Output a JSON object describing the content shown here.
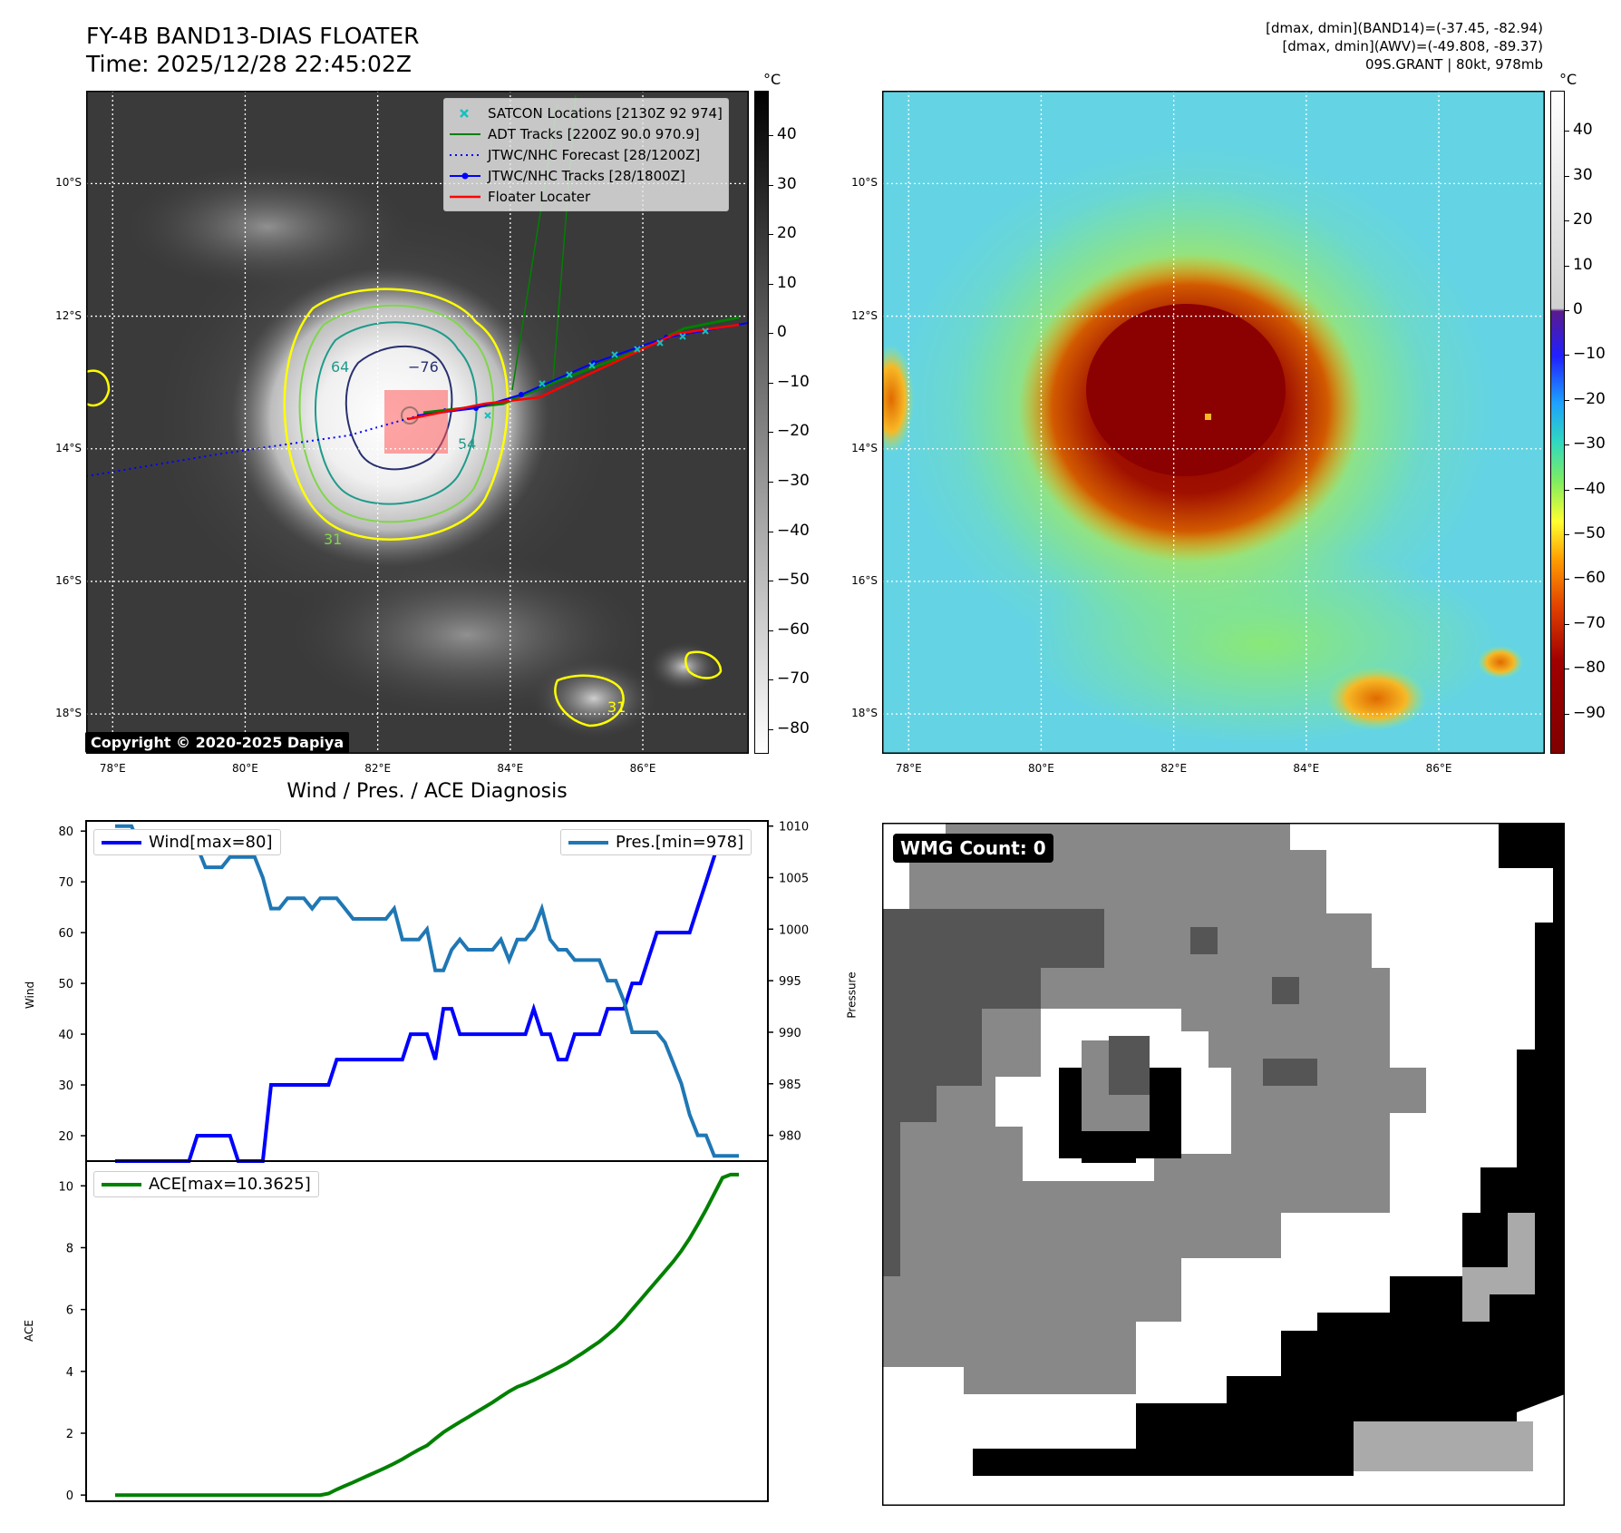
{
  "header": {
    "title_line1": "FY-4B BAND13-DIAS FLOATER",
    "title_line2": "Time: 2025/12/28 22:45:02Z",
    "info_line1": "[dmax, dmin](BAND14)=(-37.45, -82.94)",
    "info_line2": "[dmax, dmin](AWV)=(-49.808, -89.37)",
    "info_line3": "09S.GRANT | 80kt, 978mb"
  },
  "map_axes": {
    "lat_labels": [
      "10°S",
      "12°S",
      "14°S",
      "16°S",
      "18°S"
    ],
    "lon_labels": [
      "78°E",
      "80°E",
      "82°E",
      "84°E",
      "86°E"
    ],
    "lat_values": [
      -10,
      -12,
      -14,
      -16,
      -18
    ],
    "lon_values": [
      78,
      80,
      82,
      84,
      86
    ],
    "lat_range": [
      -18.6,
      -8.6
    ],
    "lon_range": [
      77.6,
      87.6
    ]
  },
  "ir_panel": {
    "colorbar_unit": "°C",
    "colorbar_ticks": [
      "40",
      "30",
      "20",
      "10",
      "0",
      "−10",
      "−20",
      "−30",
      "−40",
      "−50",
      "−60",
      "−70",
      "−80"
    ],
    "colorbar_tick_values": [
      40,
      30,
      20,
      10,
      0,
      -10,
      -20,
      -30,
      -40,
      -50,
      -60,
      -70,
      -80
    ],
    "colorbar_range": [
      -85,
      49
    ],
    "copyright": "Copyright © 2020-2025 Dapiya",
    "contour_labels": [
      "64",
      "−76",
      "54",
      "31",
      "31"
    ],
    "legend": [
      {
        "label": "SATCON Locations [2130Z 92 974]",
        "color": "#17bfbf",
        "marker": "x-icon"
      },
      {
        "label": "ADT Tracks [2200Z 90.0 970.9]",
        "color": "#008000",
        "marker": "line-icon"
      },
      {
        "label": "JTWC/NHC Forecast [28/1200Z]",
        "color": "#0000ff",
        "marker": "dotted-line-icon"
      },
      {
        "label": "JTWC/NHC Tracks [28/1800Z]",
        "color": "#0000ff",
        "marker": "dot-line-icon"
      },
      {
        "label": "Floater Locater",
        "color": "#ff0000",
        "marker": "line-icon"
      }
    ]
  },
  "awv_panel": {
    "colorbar_unit": "°C",
    "colorbar_ticks": [
      "40",
      "30",
      "20",
      "10",
      "0",
      "−10",
      "−20",
      "−30",
      "−40",
      "−50",
      "−60",
      "−70",
      "−80",
      "−90"
    ],
    "colorbar_tick_values": [
      40,
      30,
      20,
      10,
      0,
      -10,
      -20,
      -30,
      -40,
      -50,
      -60,
      -70,
      -80,
      -90
    ],
    "colorbar_range": [
      -99,
      49
    ]
  },
  "wmg_panel": {
    "count_label": "WMG Count: 0"
  },
  "chart_data": [
    {
      "type": "line",
      "title": "Wind / Pres. / ACE Diagnosis",
      "ylabel": "Wind",
      "ylabel_right": "Pressure",
      "ylim": [
        15,
        82
      ],
      "ylim_right": [
        977.5,
        1010.5
      ],
      "yticks": [
        20,
        30,
        40,
        50,
        60,
        70,
        80
      ],
      "yticks_right": [
        980,
        985,
        990,
        995,
        1000,
        1005,
        1010
      ],
      "series": [
        {
          "name": "Wind[max=80]",
          "axis": "left",
          "color": "#0000ff",
          "values": [
            15,
            15,
            15,
            15,
            15,
            15,
            15,
            15,
            15,
            15,
            20,
            20,
            20,
            20,
            20,
            15,
            15,
            15,
            15,
            30,
            30,
            30,
            30,
            30,
            30,
            30,
            30,
            35,
            35,
            35,
            35,
            35,
            35,
            35,
            35,
            35,
            40,
            40,
            40,
            35,
            45,
            45,
            40,
            40,
            40,
            40,
            40,
            40,
            40,
            40,
            40,
            45,
            40,
            40,
            35,
            35,
            40,
            40,
            40,
            40,
            45,
            45,
            45,
            50,
            50,
            55,
            60,
            60,
            60,
            60,
            60,
            65,
            70,
            75,
            80,
            80,
            80
          ]
        },
        {
          "name": "Pres.[min=978]",
          "axis": "right",
          "color": "#1f77b4",
          "values": [
            1010,
            1010,
            1010,
            1008,
            1008,
            1008,
            1008,
            1008,
            1008,
            1008,
            1008,
            1006,
            1006,
            1006,
            1007,
            1007,
            1007,
            1007,
            1005,
            1002,
            1002,
            1003,
            1003,
            1003,
            1002,
            1003,
            1003,
            1003,
            1002,
            1001,
            1001,
            1001,
            1001,
            1001,
            1002,
            999,
            999,
            999,
            1000,
            996,
            996,
            998,
            999,
            998,
            998,
            998,
            998,
            999,
            997,
            999,
            999,
            1000,
            1002,
            999,
            998,
            998,
            997,
            997,
            997,
            997,
            995,
            995,
            993,
            990,
            990,
            990,
            990,
            989,
            987,
            985,
            982,
            980,
            980,
            978,
            978,
            978,
            978
          ]
        }
      ]
    },
    {
      "type": "line",
      "title": "",
      "ylabel": "ACE",
      "ylim": [
        -0.2,
        10.8
      ],
      "yticks": [
        0,
        2,
        4,
        6,
        8,
        10
      ],
      "series": [
        {
          "name": "ACE[max=10.3625]",
          "color": "#008000",
          "values": [
            0,
            0,
            0,
            0,
            0,
            0,
            0,
            0,
            0,
            0,
            0,
            0,
            0,
            0,
            0,
            0,
            0,
            0,
            0,
            0,
            0,
            0,
            0,
            0,
            0,
            0,
            0.05,
            0.18,
            0.3,
            0.41,
            0.53,
            0.65,
            0.77,
            0.89,
            1.02,
            1.16,
            1.32,
            1.47,
            1.6,
            1.82,
            2.03,
            2.2,
            2.36,
            2.52,
            2.68,
            2.84,
            3.0,
            3.18,
            3.35,
            3.5,
            3.6,
            3.72,
            3.85,
            3.98,
            4.12,
            4.26,
            4.43,
            4.6,
            4.78,
            4.96,
            5.18,
            5.41,
            5.69,
            6.0,
            6.31,
            6.62,
            6.93,
            7.24,
            7.55,
            7.9,
            8.3,
            8.75,
            9.23,
            9.74,
            10.26,
            10.3625,
            10.3625
          ]
        }
      ]
    }
  ]
}
